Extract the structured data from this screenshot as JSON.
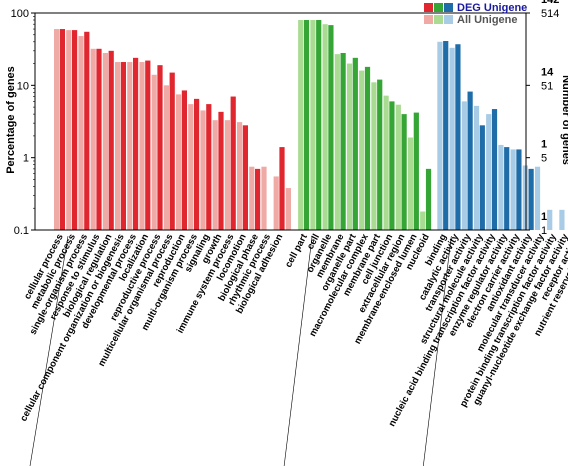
{
  "chart_data": {
    "type": "bar",
    "ylabel": "Percentage of genes",
    "ylabel_right": "Number of genes",
    "y_scale": "log",
    "ylim": [
      0.1,
      100
    ],
    "y_ticks": [
      "0.1",
      "1",
      "10",
      "100"
    ],
    "right_ticks": [
      {
        "value": 1,
        "all": "1",
        "deg": "1"
      },
      {
        "value": 10,
        "all": "5",
        "deg": "1"
      },
      {
        "value": 100,
        "all": "51",
        "deg": "14"
      },
      {
        "value": 1000,
        "all": "514",
        "deg": "142"
      }
    ],
    "right_tick_colors": {
      "all": "#000000",
      "deg": "#1a1aa0"
    },
    "legend": {
      "deg_label": "DEG Unigene",
      "all_label": "All Unigene",
      "deg_color": "#1a1aa0",
      "all_color": "#555555"
    },
    "colors": {
      "bp": {
        "deg": "#e0262e",
        "all": "#f0aaa6"
      },
      "cc": {
        "deg": "#35a535",
        "all": "#a9dc92"
      },
      "mf": {
        "deg": "#1f6da8",
        "all": "#a8cbe6"
      }
    },
    "groups": [
      {
        "key": "bp",
        "categories": [
          "cellular process",
          "metabolic process",
          "single-organism process",
          "response to stimulus",
          "biological regulation",
          "cellular component organization or biogenesis",
          "developmental process",
          "localization",
          "reproductive process",
          "multicellular organismal process",
          "reproduction",
          "multi-organism process",
          "signaling",
          "growth",
          "immune system process",
          "locomotion",
          "biological phase",
          "rhythmic process",
          "biological adhesion"
        ],
        "all": [
          60,
          58,
          48,
          32,
          28,
          21,
          21,
          21,
          14,
          10,
          7.5,
          5.5,
          4.5,
          3.3,
          3.3,
          3.1,
          0.75,
          0.75,
          0.55
        ],
        "deg": [
          60,
          58,
          55,
          32,
          30,
          21,
          24,
          22,
          19,
          15,
          8.5,
          6.5,
          5.5,
          4.3,
          7.0,
          2.8,
          0.7,
          0.1,
          1.4
        ],
        "extra_all": [
          0.38
        ]
      },
      {
        "key": "cc",
        "categories": [
          "cell part",
          "cell",
          "organelle",
          "membrane",
          "organelle part",
          "macromolecular complex",
          "membrane part",
          "cell junction",
          "extracellular region",
          "membrane-enclosed lumen",
          "nucleoid"
        ],
        "all": [
          80,
          80,
          70,
          27,
          20,
          16,
          11,
          7.2,
          5.4,
          1.9,
          0.18
        ],
        "deg": [
          80,
          80,
          68,
          28,
          24,
          18,
          12,
          6.0,
          4.0,
          4.2,
          0.7
        ]
      },
      {
        "key": "mf",
        "categories": [
          "binding",
          "catalytic activity",
          "transporter activity",
          "structural molecule activity",
          "nucleic acid binding transcription factor activity",
          "enzyme regulator activity",
          "electron carrier activity",
          "antioxidant activity",
          "molecular transducer activity",
          "protein binding transcription factor activity",
          "guanyl-nucleotide exchange factor activity",
          "receptor activity",
          "nutrient reservoir activity"
        ],
        "all": [
          40,
          33,
          6.0,
          5.2,
          4.0,
          1.5,
          1.3,
          0.78,
          0.75,
          0.19,
          0.19,
          0.19,
          0.19
        ],
        "deg": [
          41,
          37,
          8.2,
          2.8,
          4.7,
          1.4,
          1.3,
          0.7,
          0.1,
          0.1,
          0.1,
          0.1,
          0.7
        ]
      }
    ]
  }
}
